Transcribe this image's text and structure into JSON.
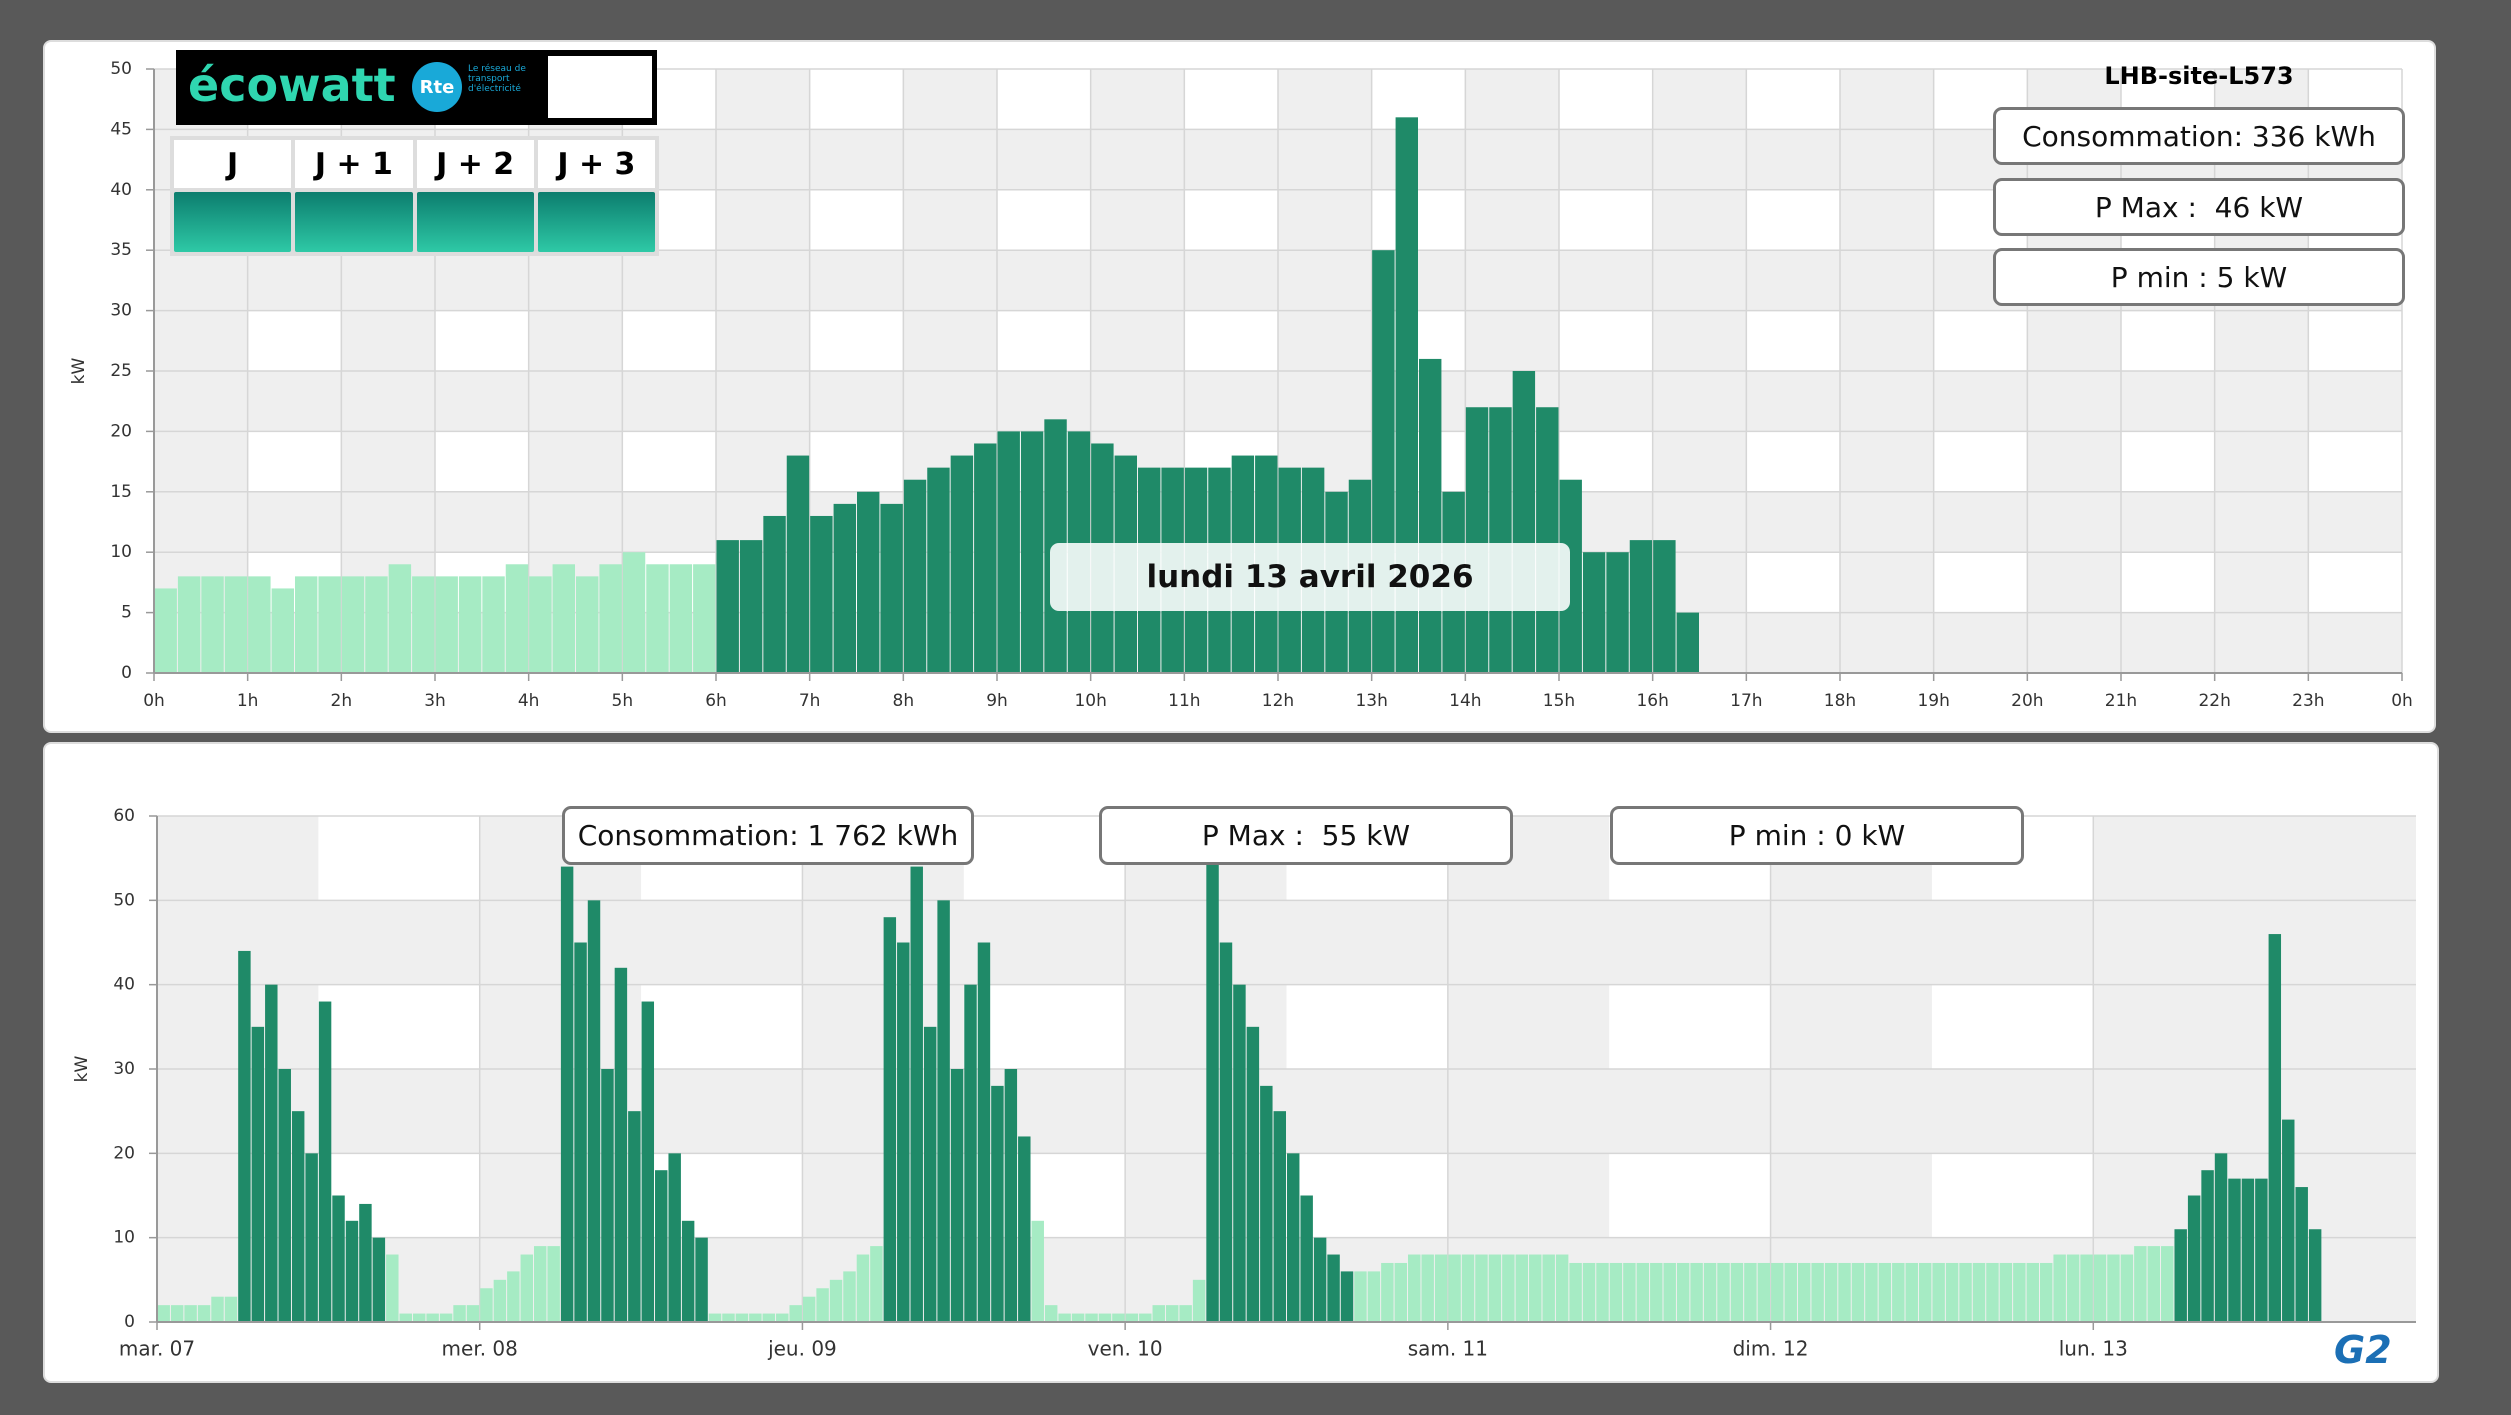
{
  "chart_data": [
    {
      "type": "bar",
      "title": "LHB-site-L573",
      "subtitle": "lundi 13 avril 2026",
      "y_label": "kW",
      "annotations": [
        "Consommation: 336 kWh",
        "P Max :  46 kW",
        "P min : 5 kW"
      ],
      "xlim": [
        0,
        24
      ],
      "ylim": [
        0,
        50
      ],
      "yticks": [
        0,
        5,
        10,
        15,
        20,
        25,
        30,
        35,
        40,
        45,
        50
      ],
      "grid": true,
      "xticks": [
        {
          "value": 0,
          "label": "0h"
        },
        {
          "value": 1,
          "label": "1h"
        },
        {
          "value": 2,
          "label": "2h"
        },
        {
          "value": 3,
          "label": "3h"
        },
        {
          "value": 4,
          "label": "4h"
        },
        {
          "value": 5,
          "label": "5h"
        },
        {
          "value": 6,
          "label": "6h"
        },
        {
          "value": 7,
          "label": "7h"
        },
        {
          "value": 8,
          "label": "8h"
        },
        {
          "value": 9,
          "label": "9h"
        },
        {
          "value": 10,
          "label": "10h"
        },
        {
          "value": 11,
          "label": "11h"
        },
        {
          "value": 12,
          "label": "12h"
        },
        {
          "value": 13,
          "label": "13h"
        },
        {
          "value": 14,
          "label": "14h"
        },
        {
          "value": 15,
          "label": "15h"
        },
        {
          "value": 16,
          "label": "16h"
        },
        {
          "value": 17,
          "label": "17h"
        },
        {
          "value": 18,
          "label": "18h"
        },
        {
          "value": 19,
          "label": "19h"
        },
        {
          "value": 20,
          "label": "20h"
        },
        {
          "value": 21,
          "label": "21h"
        },
        {
          "value": 22,
          "label": "22h"
        },
        {
          "value": 23,
          "label": "23h"
        },
        {
          "value": 24,
          "label": "0h"
        }
      ],
      "x": [
        0,
        0.25,
        0.5,
        0.75,
        1,
        1.25,
        1.5,
        1.75,
        2,
        2.25,
        2.5,
        2.75,
        3,
        3.25,
        3.5,
        3.75,
        4,
        4.25,
        4.5,
        4.75,
        5,
        5.25,
        5.5,
        5.75,
        6,
        6.25,
        6.5,
        6.75,
        7,
        7.25,
        7.5,
        7.75,
        8,
        8.25,
        8.5,
        8.75,
        9,
        9.25,
        9.5,
        9.75,
        10,
        10.25,
        10.5,
        10.75,
        11,
        11.25,
        11.5,
        11.75,
        12,
        12.25,
        12.5,
        12.75,
        13,
        13.25,
        13.5,
        13.75,
        14,
        14.25,
        14.5,
        14.75,
        15,
        15.25,
        15.5,
        15.75,
        16,
        16.25
      ],
      "series": [
        {
          "color": "#a6ebc4",
          "values": [
            7,
            8,
            8,
            8,
            8,
            7,
            8,
            8,
            8,
            8,
            9,
            8,
            8,
            8,
            8,
            9,
            8,
            9,
            8,
            9,
            10,
            9,
            9,
            9,
            null,
            null,
            null,
            null,
            null,
            null,
            null,
            null,
            null,
            null,
            null,
            null,
            null,
            null,
            null,
            null,
            null,
            null,
            null,
            null,
            null,
            null,
            null,
            null,
            null,
            null,
            null,
            null,
            null,
            null,
            null,
            null,
            null,
            null,
            null,
            null,
            null,
            null,
            null,
            null,
            null,
            null
          ]
        },
        {
          "color": "#1f8a68",
          "values": [
            null,
            null,
            null,
            null,
            null,
            null,
            null,
            null,
            null,
            null,
            null,
            null,
            null,
            null,
            null,
            null,
            null,
            null,
            null,
            null,
            null,
            null,
            null,
            null,
            11,
            11,
            13,
            18,
            13,
            14,
            15,
            14,
            16,
            17,
            18,
            19,
            20,
            20,
            21,
            20,
            19,
            18,
            17,
            17,
            17,
            17,
            18,
            18,
            17,
            17,
            15,
            16,
            35,
            46,
            26,
            15,
            22,
            22,
            25,
            22,
            16,
            10,
            10,
            11,
            11,
            5
          ]
        }
      ]
    },
    {
      "type": "bar",
      "y_label": "kW",
      "annotations": [
        "Consommation: 1 762 kWh",
        "P Max :  55 kW",
        "P min : 0 kW"
      ],
      "xlim": [
        0,
        168
      ],
      "ylim": [
        0,
        60
      ],
      "yticks": [
        0,
        10,
        20,
        30,
        40,
        50,
        60
      ],
      "grid": true,
      "xticks": [
        {
          "value": 0,
          "label": "mar. 07"
        },
        {
          "value": 24,
          "label": "mer. 08"
        },
        {
          "value": 48,
          "label": "jeu. 09"
        },
        {
          "value": 72,
          "label": "ven. 10"
        },
        {
          "value": 96,
          "label": "sam. 11"
        },
        {
          "value": 120,
          "label": "dim. 12"
        },
        {
          "value": 144,
          "label": "lun. 13"
        }
      ],
      "x": [
        0,
        1,
        2,
        3,
        4,
        5,
        6,
        7,
        8,
        9,
        10,
        11,
        12,
        13,
        14,
        15,
        16,
        17,
        18,
        19,
        20,
        21,
        22,
        23,
        24,
        25,
        26,
        27,
        28,
        29,
        30,
        31,
        32,
        33,
        34,
        35,
        36,
        37,
        38,
        39,
        40,
        41,
        42,
        43,
        44,
        45,
        46,
        47,
        48,
        49,
        50,
        51,
        52,
        53,
        54,
        55,
        56,
        57,
        58,
        59,
        60,
        61,
        62,
        63,
        64,
        65,
        66,
        67,
        68,
        69,
        70,
        71,
        72,
        73,
        74,
        75,
        76,
        77,
        78,
        79,
        80,
        81,
        82,
        83,
        84,
        85,
        86,
        87,
        88,
        89,
        90,
        91,
        92,
        93,
        94,
        95,
        96,
        97,
        98,
        99,
        100,
        101,
        102,
        103,
        104,
        105,
        106,
        107,
        108,
        109,
        110,
        111,
        112,
        113,
        114,
        115,
        116,
        117,
        118,
        119,
        120,
        121,
        122,
        123,
        124,
        125,
        126,
        127,
        128,
        129,
        130,
        131,
        132,
        133,
        134,
        135,
        136,
        137,
        138,
        139,
        140,
        141,
        142,
        143,
        144,
        145,
        146,
        147,
        148,
        149,
        150,
        151,
        152,
        153,
        154,
        155,
        156,
        157,
        158,
        159,
        160
      ],
      "series": [
        {
          "color": "#a6ebc4",
          "values": [
            2,
            2,
            2,
            2,
            3,
            3,
            null,
            null,
            null,
            null,
            null,
            null,
            null,
            null,
            null,
            null,
            null,
            8,
            1,
            1,
            1,
            1,
            2,
            2,
            4,
            5,
            6,
            8,
            9,
            9,
            null,
            null,
            null,
            null,
            null,
            null,
            null,
            null,
            null,
            null,
            null,
            1,
            1,
            1,
            1,
            1,
            1,
            2,
            3,
            4,
            5,
            6,
            8,
            9,
            null,
            null,
            null,
            null,
            null,
            null,
            null,
            null,
            null,
            null,
            null,
            12,
            2,
            1,
            1,
            1,
            1,
            1,
            1,
            1,
            2,
            2,
            2,
            5,
            null,
            null,
            null,
            null,
            null,
            null,
            null,
            null,
            null,
            null,
            null,
            6,
            6,
            7,
            7,
            8,
            8,
            8,
            8,
            8,
            8,
            8,
            8,
            8,
            8,
            8,
            8,
            7,
            7,
            7,
            7,
            7,
            7,
            7,
            7,
            7,
            7,
            7,
            7,
            7,
            7,
            7,
            7,
            7,
            7,
            7,
            7,
            7,
            7,
            7,
            7,
            7,
            7,
            7,
            7,
            7,
            7,
            7,
            7,
            7,
            7,
            7,
            7,
            8,
            8,
            8,
            8,
            8,
            8,
            9,
            9,
            9,
            null,
            null,
            null,
            null,
            null,
            null,
            null,
            null,
            null,
            null,
            null
          ]
        },
        {
          "color": "#1f8a68",
          "values": [
            null,
            null,
            null,
            null,
            null,
            null,
            44,
            35,
            40,
            30,
            25,
            20,
            38,
            15,
            12,
            14,
            10,
            null,
            null,
            null,
            null,
            null,
            null,
            null,
            null,
            null,
            null,
            null,
            null,
            null,
            54,
            45,
            50,
            30,
            42,
            25,
            38,
            18,
            20,
            12,
            10,
            null,
            null,
            null,
            null,
            null,
            null,
            null,
            null,
            null,
            null,
            null,
            null,
            null,
            48,
            45,
            54,
            35,
            50,
            30,
            40,
            45,
            28,
            30,
            22,
            null,
            null,
            null,
            null,
            null,
            null,
            null,
            null,
            null,
            null,
            null,
            null,
            null,
            55,
            45,
            40,
            35,
            28,
            25,
            20,
            15,
            10,
            8,
            6,
            null,
            null,
            null,
            null,
            null,
            null,
            null,
            null,
            null,
            null,
            null,
            null,
            null,
            null,
            null,
            null,
            null,
            null,
            null,
            null,
            null,
            null,
            null,
            null,
            null,
            null,
            null,
            null,
            null,
            null,
            null,
            null,
            null,
            null,
            null,
            null,
            null,
            null,
            null,
            null,
            null,
            null,
            null,
            null,
            null,
            null,
            null,
            null,
            null,
            null,
            null,
            null,
            null,
            null,
            null,
            null,
            null,
            null,
            null,
            null,
            null,
            11,
            15,
            18,
            20,
            17,
            17,
            17,
            46,
            24,
            16,
            11
          ]
        }
      ]
    }
  ],
  "ecowatt": {
    "logo": "écowatt",
    "rte": "Rte",
    "rte_text": "Le réseau de transport d'électricité",
    "days": [
      "J",
      "J + 1",
      "J + 2",
      "J + 3"
    ]
  },
  "footer_logo": "G2"
}
